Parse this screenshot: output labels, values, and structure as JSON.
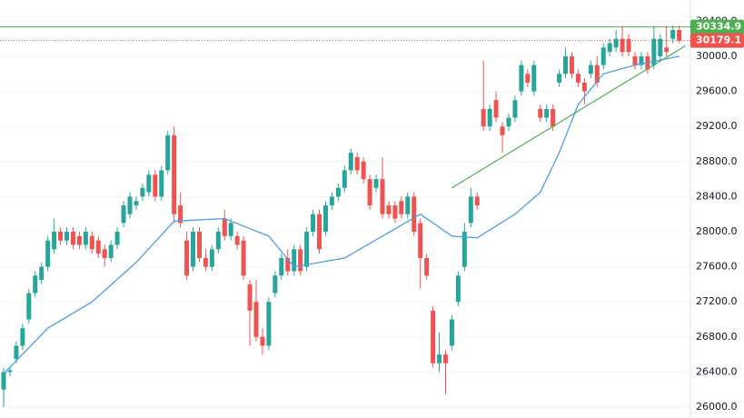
{
  "chart_data": {
    "type": "candlestick",
    "ylim": [
      25876,
      30642
    ],
    "yticks": [
      {
        "value": 26000,
        "label": "26000.0"
      },
      {
        "value": 26400,
        "label": "26400.0"
      },
      {
        "value": 26800,
        "label": "26800.0"
      },
      {
        "value": 27200,
        "label": "27200.0"
      },
      {
        "value": 27600,
        "label": "27600.0"
      },
      {
        "value": 28000,
        "label": "28000.0"
      },
      {
        "value": 28400,
        "label": "28400.0"
      },
      {
        "value": 28800,
        "label": "28800.0"
      },
      {
        "value": 29200,
        "label": "29200.0"
      },
      {
        "value": 29600,
        "label": "29600.0"
      },
      {
        "value": 30000,
        "label": "30000.0"
      },
      {
        "value": 30400,
        "label": "30400.0"
      }
    ],
    "grid": true,
    "up_color": "#26a69a",
    "down_color": "#ef5350",
    "ohlc": [
      [
        26200,
        26450,
        26000,
        26400
      ],
      [
        26400,
        26450,
        26350,
        26420
      ],
      [
        26550,
        26750,
        26500,
        26700
      ],
      [
        26700,
        26950,
        26650,
        26900
      ],
      [
        27000,
        27350,
        26950,
        27300
      ],
      [
        27300,
        27550,
        27250,
        27500
      ],
      [
        27450,
        27650,
        27400,
        27600
      ],
      [
        27600,
        27950,
        27550,
        27900
      ],
      [
        27800,
        28150,
        27750,
        28000
      ],
      [
        28000,
        28050,
        27850,
        27900
      ],
      [
        27900,
        28050,
        27850,
        28000
      ],
      [
        28000,
        28050,
        27800,
        27850
      ],
      [
        27950,
        28000,
        27800,
        27850
      ],
      [
        27850,
        28050,
        27800,
        28000
      ],
      [
        27950,
        28000,
        27750,
        27800
      ],
      [
        27900,
        27950,
        27700,
        27750
      ],
      [
        27800,
        27850,
        27600,
        27700
      ],
      [
        27700,
        27900,
        27650,
        27850
      ],
      [
        27850,
        28050,
        27800,
        28000
      ],
      [
        28100,
        28350,
        28050,
        28300
      ],
      [
        28200,
        28450,
        28150,
        28400
      ],
      [
        28300,
        28400,
        28250,
        28350
      ],
      [
        28400,
        28550,
        28350,
        28500
      ],
      [
        28450,
        28700,
        28400,
        28650
      ],
      [
        28650,
        28700,
        28350,
        28400
      ],
      [
        28400,
        28750,
        28350,
        28700
      ],
      [
        28700,
        29150,
        28650,
        29100
      ],
      [
        29100,
        29200,
        28100,
        28200
      ],
      [
        28300,
        28450,
        28050,
        28100
      ],
      [
        27900,
        28000,
        27450,
        27500
      ],
      [
        27600,
        28050,
        27550,
        28000
      ],
      [
        28000,
        28050,
        27650,
        27700
      ],
      [
        27700,
        27800,
        27550,
        27600
      ],
      [
        27600,
        27850,
        27550,
        27800
      ],
      [
        27800,
        28050,
        27750,
        28000
      ],
      [
        28150,
        28250,
        27900,
        27950
      ],
      [
        27950,
        28150,
        27900,
        28100
      ],
      [
        27950,
        28000,
        27800,
        27850
      ],
      [
        27900,
        27950,
        27450,
        27500
      ],
      [
        27400,
        27450,
        26700,
        27100
      ],
      [
        27200,
        27450,
        26750,
        26800
      ],
      [
        26800,
        26900,
        26600,
        26700
      ],
      [
        26700,
        27250,
        26650,
        27200
      ],
      [
        27300,
        27550,
        27250,
        27500
      ],
      [
        27500,
        27750,
        27450,
        27700
      ],
      [
        27700,
        27800,
        27500,
        27550
      ],
      [
        27550,
        27850,
        27500,
        27800
      ],
      [
        27800,
        27850,
        27500,
        27550
      ],
      [
        27600,
        28050,
        27550,
        28000
      ],
      [
        28000,
        28250,
        27950,
        28200
      ],
      [
        28200,
        28250,
        27750,
        27800
      ],
      [
        28000,
        28350,
        27950,
        28300
      ],
      [
        28300,
        28450,
        28250,
        28400
      ],
      [
        28400,
        28550,
        28350,
        28500
      ],
      [
        28500,
        28750,
        28450,
        28700
      ],
      [
        28700,
        28950,
        28650,
        28900
      ],
      [
        28850,
        28900,
        28650,
        28700
      ],
      [
        28800,
        28850,
        28550,
        28600
      ],
      [
        28600,
        28650,
        28250,
        28300
      ],
      [
        28500,
        28650,
        28450,
        28600
      ],
      [
        28600,
        28850,
        28150,
        28200
      ],
      [
        28300,
        28350,
        28150,
        28200
      ],
      [
        28300,
        28350,
        28100,
        28150
      ],
      [
        28350,
        28400,
        28150,
        28200
      ],
      [
        28200,
        28450,
        28150,
        28400
      ],
      [
        28400,
        28450,
        27950,
        28000
      ],
      [
        28100,
        28150,
        27350,
        27700
      ],
      [
        27700,
        27750,
        27450,
        27500
      ],
      [
        27100,
        27150,
        26450,
        26500
      ],
      [
        26500,
        26850,
        26400,
        26600
      ],
      [
        26600,
        26650,
        26150,
        26500
      ],
      [
        26700,
        27050,
        26650,
        27000
      ],
      [
        27200,
        27550,
        27150,
        27500
      ],
      [
        27600,
        28100,
        27550,
        28000
      ],
      [
        28100,
        28500,
        28050,
        28400
      ],
      [
        28400,
        28450,
        28250,
        28300
      ],
      [
        29400,
        29950,
        29150,
        29200
      ],
      [
        29200,
        29450,
        29150,
        29400
      ],
      [
        29500,
        29600,
        29250,
        29300
      ],
      [
        29200,
        29250,
        28900,
        29100
      ],
      [
        29200,
        29350,
        29150,
        29300
      ],
      [
        29300,
        29550,
        29250,
        29500
      ],
      [
        29600,
        29950,
        29550,
        29900
      ],
      [
        29800,
        29850,
        29650,
        29700
      ],
      [
        29600,
        29950,
        29550,
        29900
      ],
      [
        29400,
        29450,
        29250,
        29300
      ],
      [
        29300,
        29450,
        29250,
        29400
      ],
      [
        29400,
        29450,
        29150,
        29200
      ],
      [
        29700,
        29850,
        29650,
        29800
      ],
      [
        29800,
        30100,
        29750,
        30000
      ],
      [
        30000,
        30050,
        29750,
        29800
      ],
      [
        29800,
        29850,
        29650,
        29700
      ],
      [
        29700,
        29750,
        29450,
        29600
      ],
      [
        29800,
        29950,
        29750,
        29900
      ],
      [
        29900,
        30000,
        29650,
        29700
      ],
      [
        29900,
        30150,
        29850,
        30100
      ],
      [
        30050,
        30200,
        30000,
        30150
      ],
      [
        30100,
        30300,
        30050,
        30200
      ],
      [
        30200,
        30350,
        30000,
        30050
      ],
      [
        30200,
        30250,
        30000,
        30050
      ],
      [
        30000,
        30050,
        29850,
        29900
      ],
      [
        29900,
        30050,
        29850,
        30000
      ],
      [
        30000,
        30050,
        29800,
        29850
      ],
      [
        29900,
        30350,
        29850,
        30200
      ],
      [
        30000,
        30250,
        29950,
        30200
      ],
      [
        30100,
        30350,
        30000,
        30050
      ],
      [
        30200,
        30350,
        30150,
        30300
      ],
      [
        30300,
        30350,
        30150,
        30179.1
      ]
    ],
    "moving_average": {
      "color": "#4a9ee8",
      "x": [
        0,
        7,
        14,
        21,
        27,
        35,
        42,
        46,
        54,
        60,
        66,
        71,
        75,
        81,
        85,
        88,
        91,
        95,
        100,
        107
      ],
      "values": [
        26380,
        26900,
        27200,
        27650,
        28120,
        28150,
        27950,
        27600,
        27700,
        27950,
        28200,
        27950,
        27930,
        28200,
        28450,
        28900,
        29450,
        29800,
        29900,
        30000
      ]
    },
    "trendline": {
      "color": "#4caf50",
      "x": [
        71,
        108
      ],
      "values": [
        28500,
        30120
      ]
    },
    "price_lines": [
      {
        "value": 30334.9,
        "color": "#4caf50"
      },
      {
        "value": 30179.1,
        "color": "#ef5350"
      }
    ]
  }
}
